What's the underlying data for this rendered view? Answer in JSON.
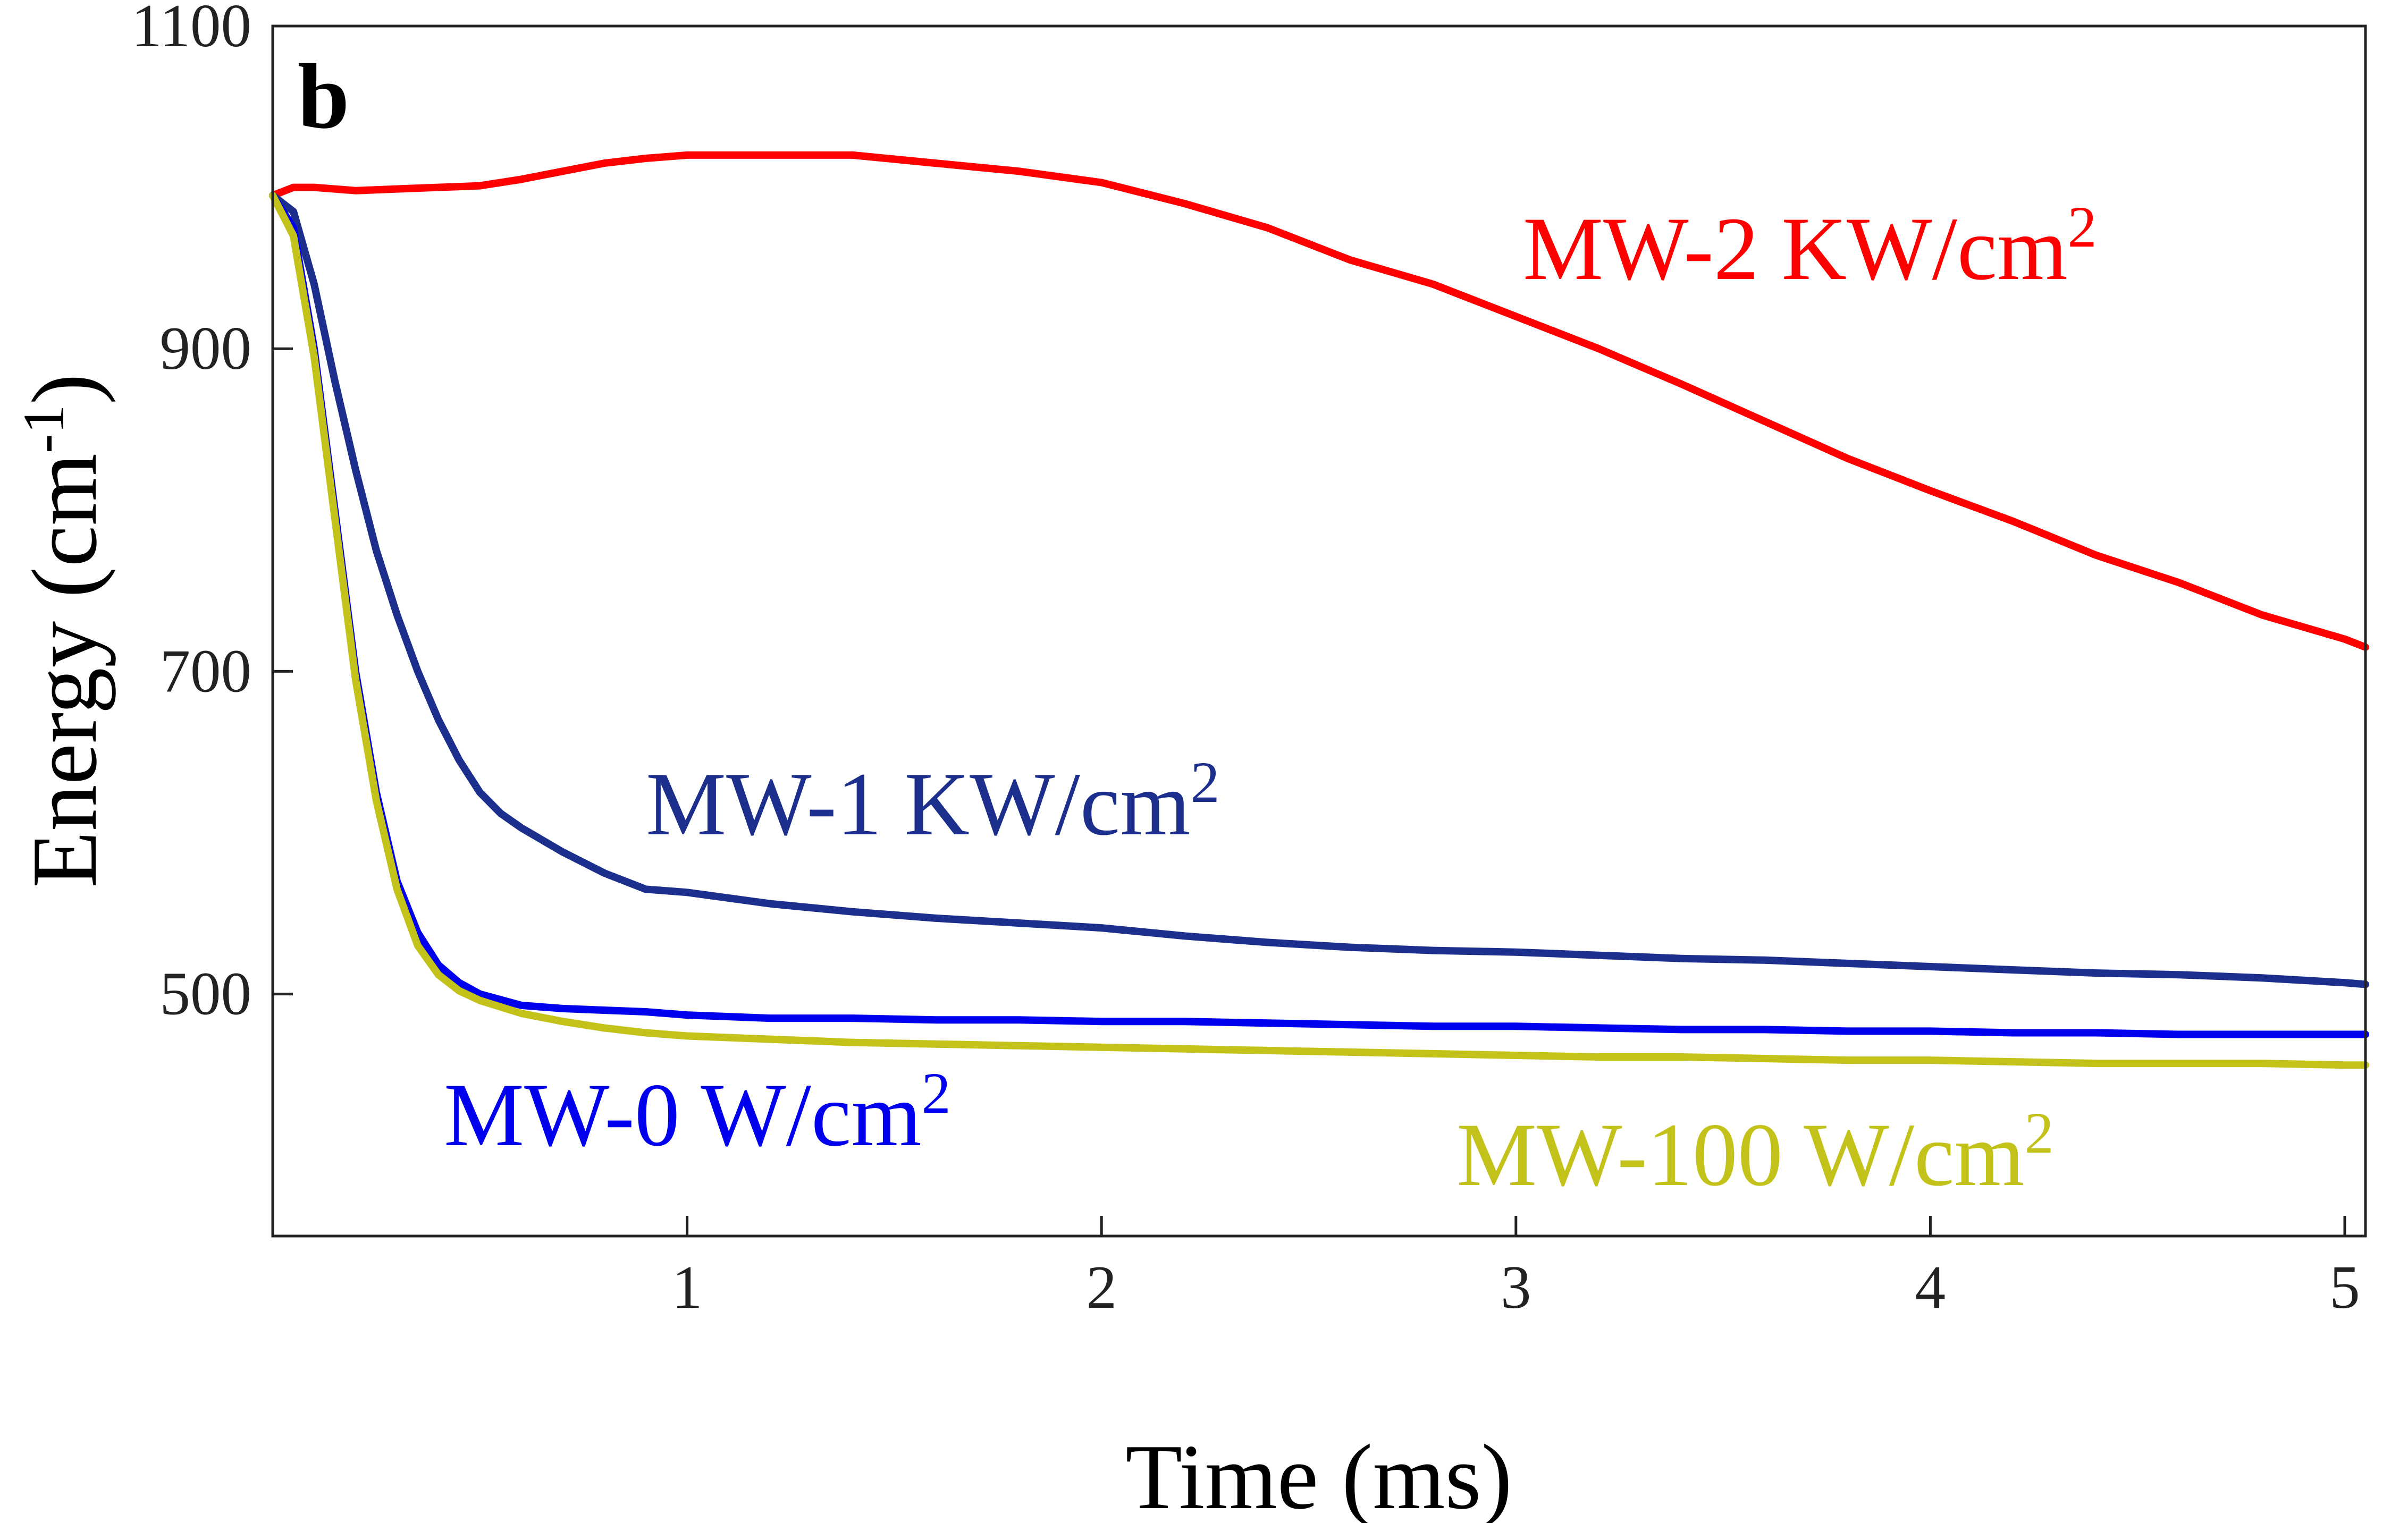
{
  "chart_data": {
    "type": "line",
    "panel_label": "b",
    "xlabel": "Time (ms)",
    "ylabel": "Energy (cm",
    "ylabel_sup": "-1",
    "ylabel_close": ")",
    "xlim": [
      0,
      5.05
    ],
    "ylim": [
      350,
      1100
    ],
    "x_ticks": [
      1,
      2,
      3,
      4,
      5
    ],
    "y_ticks": [
      500,
      700,
      900,
      1100
    ],
    "grid": false,
    "series": [
      {
        "name": "MW-2 KW/cm2",
        "label_text": "MW-2 KW/cm",
        "label_sup": "2",
        "color": "#ff0000",
        "x": [
          0,
          0.05,
          0.1,
          0.2,
          0.3,
          0.4,
          0.5,
          0.6,
          0.7,
          0.8,
          0.9,
          1.0,
          1.2,
          1.4,
          1.6,
          1.8,
          2.0,
          2.2,
          2.4,
          2.6,
          2.8,
          3.0,
          3.2,
          3.4,
          3.6,
          3.8,
          4.0,
          4.2,
          4.4,
          4.6,
          4.8,
          5.0,
          5.05
        ],
        "y": [
          995,
          1000,
          1000,
          998,
          999,
          1000,
          1001,
          1005,
          1010,
          1015,
          1018,
          1020,
          1020,
          1020,
          1015,
          1010,
          1003,
          990,
          975,
          955,
          940,
          920,
          900,
          878,
          855,
          832,
          812,
          793,
          772,
          755,
          735,
          720,
          715
        ]
      },
      {
        "name": "MW-1 KW/cm2",
        "label_text": "MW-1 KW/cm",
        "label_sup": "2",
        "color": "#1c2f8c",
        "x": [
          0,
          0.05,
          0.1,
          0.15,
          0.2,
          0.25,
          0.3,
          0.35,
          0.4,
          0.45,
          0.5,
          0.55,
          0.6,
          0.7,
          0.8,
          0.9,
          1.0,
          1.2,
          1.4,
          1.6,
          1.8,
          2.0,
          2.2,
          2.4,
          2.6,
          2.8,
          3.0,
          3.2,
          3.4,
          3.6,
          3.8,
          4.0,
          4.2,
          4.4,
          4.6,
          4.8,
          5.0,
          5.05
        ],
        "y": [
          995,
          985,
          940,
          880,
          825,
          775,
          735,
          700,
          670,
          645,
          625,
          612,
          603,
          588,
          575,
          565,
          563,
          556,
          551,
          547,
          544,
          541,
          536,
          532,
          529,
          527,
          526,
          524,
          522,
          521,
          519,
          517,
          515,
          513,
          512,
          510,
          507,
          506
        ]
      },
      {
        "name": "MW-0 W/cm2",
        "label_text": "MW-0 W/cm",
        "label_sup": "2",
        "color": "#0000ee",
        "x": [
          0,
          0.05,
          0.1,
          0.15,
          0.2,
          0.25,
          0.3,
          0.35,
          0.4,
          0.45,
          0.5,
          0.6,
          0.7,
          0.8,
          0.9,
          1.0,
          1.2,
          1.4,
          1.6,
          1.8,
          2.0,
          2.2,
          2.4,
          2.6,
          2.8,
          3.0,
          3.2,
          3.4,
          3.6,
          3.8,
          4.0,
          4.2,
          4.4,
          4.6,
          4.8,
          5.0,
          5.05
        ],
        "y": [
          995,
          975,
          900,
          800,
          700,
          625,
          570,
          538,
          518,
          507,
          500,
          493,
          491,
          490,
          489,
          487,
          485,
          485,
          484,
          484,
          483,
          483,
          482,
          481,
          480,
          480,
          479,
          478,
          478,
          477,
          477,
          476,
          476,
          475,
          475,
          475,
          475
        ]
      },
      {
        "name": "MW-100 W/cm2",
        "label_text": "MW-100 W/cm",
        "label_sup": "2",
        "color": "#c3c21a",
        "x": [
          0,
          0.05,
          0.1,
          0.15,
          0.2,
          0.25,
          0.3,
          0.35,
          0.4,
          0.45,
          0.5,
          0.6,
          0.7,
          0.8,
          0.9,
          1.0,
          1.2,
          1.4,
          1.6,
          1.8,
          2.0,
          2.2,
          2.4,
          2.6,
          2.8,
          3.0,
          3.2,
          3.4,
          3.6,
          3.8,
          4.0,
          4.2,
          4.4,
          4.6,
          4.8,
          5.0,
          5.05
        ],
        "y": [
          995,
          970,
          895,
          795,
          695,
          620,
          565,
          530,
          512,
          502,
          496,
          488,
          483,
          479,
          476,
          474,
          472,
          470,
          469,
          468,
          467,
          466,
          465,
          464,
          463,
          462,
          461,
          461,
          460,
          459,
          459,
          458,
          457,
          457,
          457,
          456,
          456
        ]
      }
    ]
  }
}
